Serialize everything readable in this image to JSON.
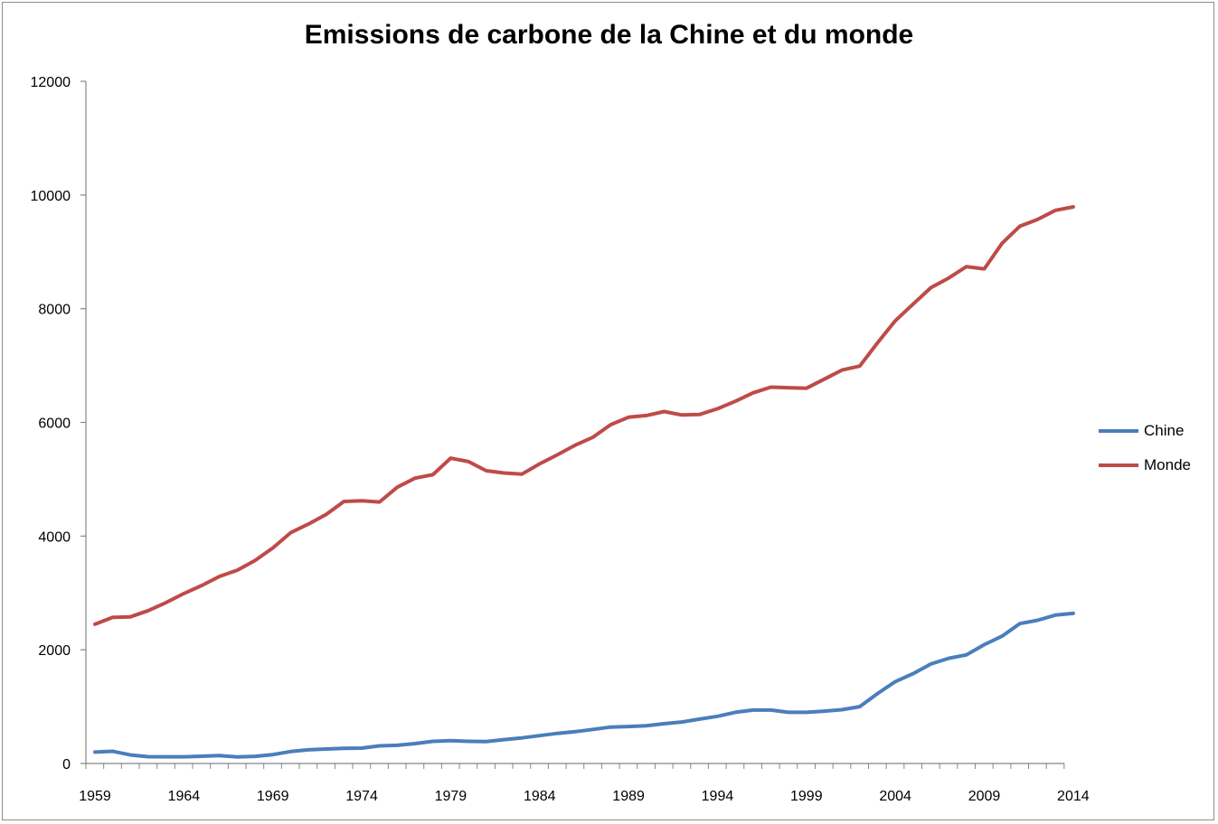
{
  "chart_data": {
    "type": "line",
    "title": "Emissions de carbone de la Chine et du monde",
    "xlabel": "",
    "ylabel": "",
    "x": [
      1959,
      1960,
      1961,
      1962,
      1963,
      1964,
      1965,
      1966,
      1967,
      1968,
      1969,
      1970,
      1971,
      1972,
      1973,
      1974,
      1975,
      1976,
      1977,
      1978,
      1979,
      1980,
      1981,
      1982,
      1983,
      1984,
      1985,
      1986,
      1987,
      1988,
      1989,
      1990,
      1991,
      1992,
      1993,
      1994,
      1995,
      1996,
      1997,
      1998,
      1999,
      2000,
      2001,
      2002,
      2003,
      2004,
      2005,
      2006,
      2007,
      2008,
      2009,
      2010,
      2011,
      2012,
      2013,
      2014
    ],
    "xlim": [
      1959,
      2014
    ],
    "ylim": [
      0,
      12000
    ],
    "x_ticks": [
      "1959",
      "1964",
      "1969",
      "1974",
      "1979",
      "1984",
      "1989",
      "1994",
      "1999",
      "2004",
      "2009",
      "2014"
    ],
    "y_ticks": [
      "0",
      "2000",
      "4000",
      "6000",
      "8000",
      "10000",
      "12000"
    ],
    "legend_position": "right",
    "grid": false,
    "series": [
      {
        "name": "Chine",
        "color": "#4a7ebb",
        "values": [
          200,
          215,
          150,
          120,
          118,
          117,
          127,
          140,
          115,
          125,
          155,
          210,
          240,
          255,
          265,
          270,
          310,
          320,
          350,
          390,
          400,
          390,
          385,
          420,
          450,
          490,
          530,
          560,
          600,
          640,
          650,
          665,
          700,
          730,
          780,
          830,
          900,
          940,
          940,
          900,
          900,
          920,
          945,
          1000,
          1230,
          1440,
          1580,
          1750,
          1850,
          1910,
          2090,
          2240,
          2460,
          2520,
          2610,
          2640
        ]
      },
      {
        "name": "Monde",
        "color": "#be4b48",
        "values": [
          2450,
          2570,
          2580,
          2690,
          2830,
          2990,
          3130,
          3290,
          3400,
          3570,
          3790,
          4060,
          4210,
          4380,
          4610,
          4620,
          4600,
          4860,
          5020,
          5080,
          5370,
          5310,
          5150,
          5110,
          5090,
          5270,
          5430,
          5600,
          5740,
          5960,
          6090,
          6120,
          6190,
          6130,
          6140,
          6240,
          6370,
          6520,
          6620,
          6610,
          6600,
          6760,
          6920,
          6990,
          7400,
          7790,
          8080,
          8370,
          8540,
          8740,
          8700,
          9150,
          9450,
          9570,
          9730,
          9790
        ]
      }
    ]
  }
}
